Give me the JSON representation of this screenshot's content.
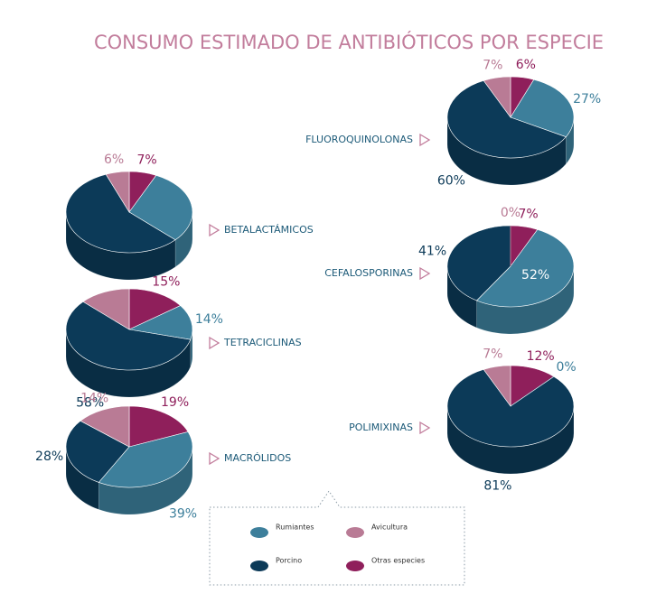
{
  "title": "CONSUMO ESTIMADO DE ANTIBIÓTICOS POR ESPECIE",
  "legend": {
    "items": [
      "Rumiantes",
      "Porcino",
      "Avicultura",
      "Otras especies"
    ],
    "colors": [
      "#3d7f9b",
      "#0c3a58",
      "#b97b95",
      "#8f1f5b"
    ]
  },
  "chart_data": [
    {
      "type": "pie",
      "title": "FLUOROQUINOLONAS",
      "values": [
        27,
        60,
        7,
        6
      ],
      "value_labels": [
        "27%",
        "60%",
        "7%",
        "6%"
      ]
    },
    {
      "type": "pie",
      "title": "BETALACTÁMICOS",
      "values": [
        30,
        57,
        6,
        7
      ],
      "value_labels": [
        null,
        null,
        "6%",
        "7%"
      ]
    },
    {
      "type": "pie",
      "title": "TETRACICLINAS",
      "values": [
        14,
        58,
        13,
        15
      ],
      "value_labels": [
        "14%",
        "58%",
        null,
        "15%"
      ]
    },
    {
      "type": "pie",
      "title": "MACRÓLIDOS",
      "values": [
        39,
        28,
        14,
        19
      ],
      "value_labels": [
        "39%",
        "28%",
        "14%",
        "19%"
      ]
    },
    {
      "type": "pie",
      "title": "CEFALOSPORINAS",
      "values": [
        52,
        41,
        0,
        7
      ],
      "value_labels": [
        "52%",
        "41%",
        "0%",
        "7%"
      ]
    },
    {
      "type": "pie",
      "title": "POLIMIXINAS",
      "values": [
        0,
        81,
        7,
        12
      ],
      "value_labels": [
        "0%",
        "81%",
        "7%",
        "12%"
      ]
    }
  ]
}
